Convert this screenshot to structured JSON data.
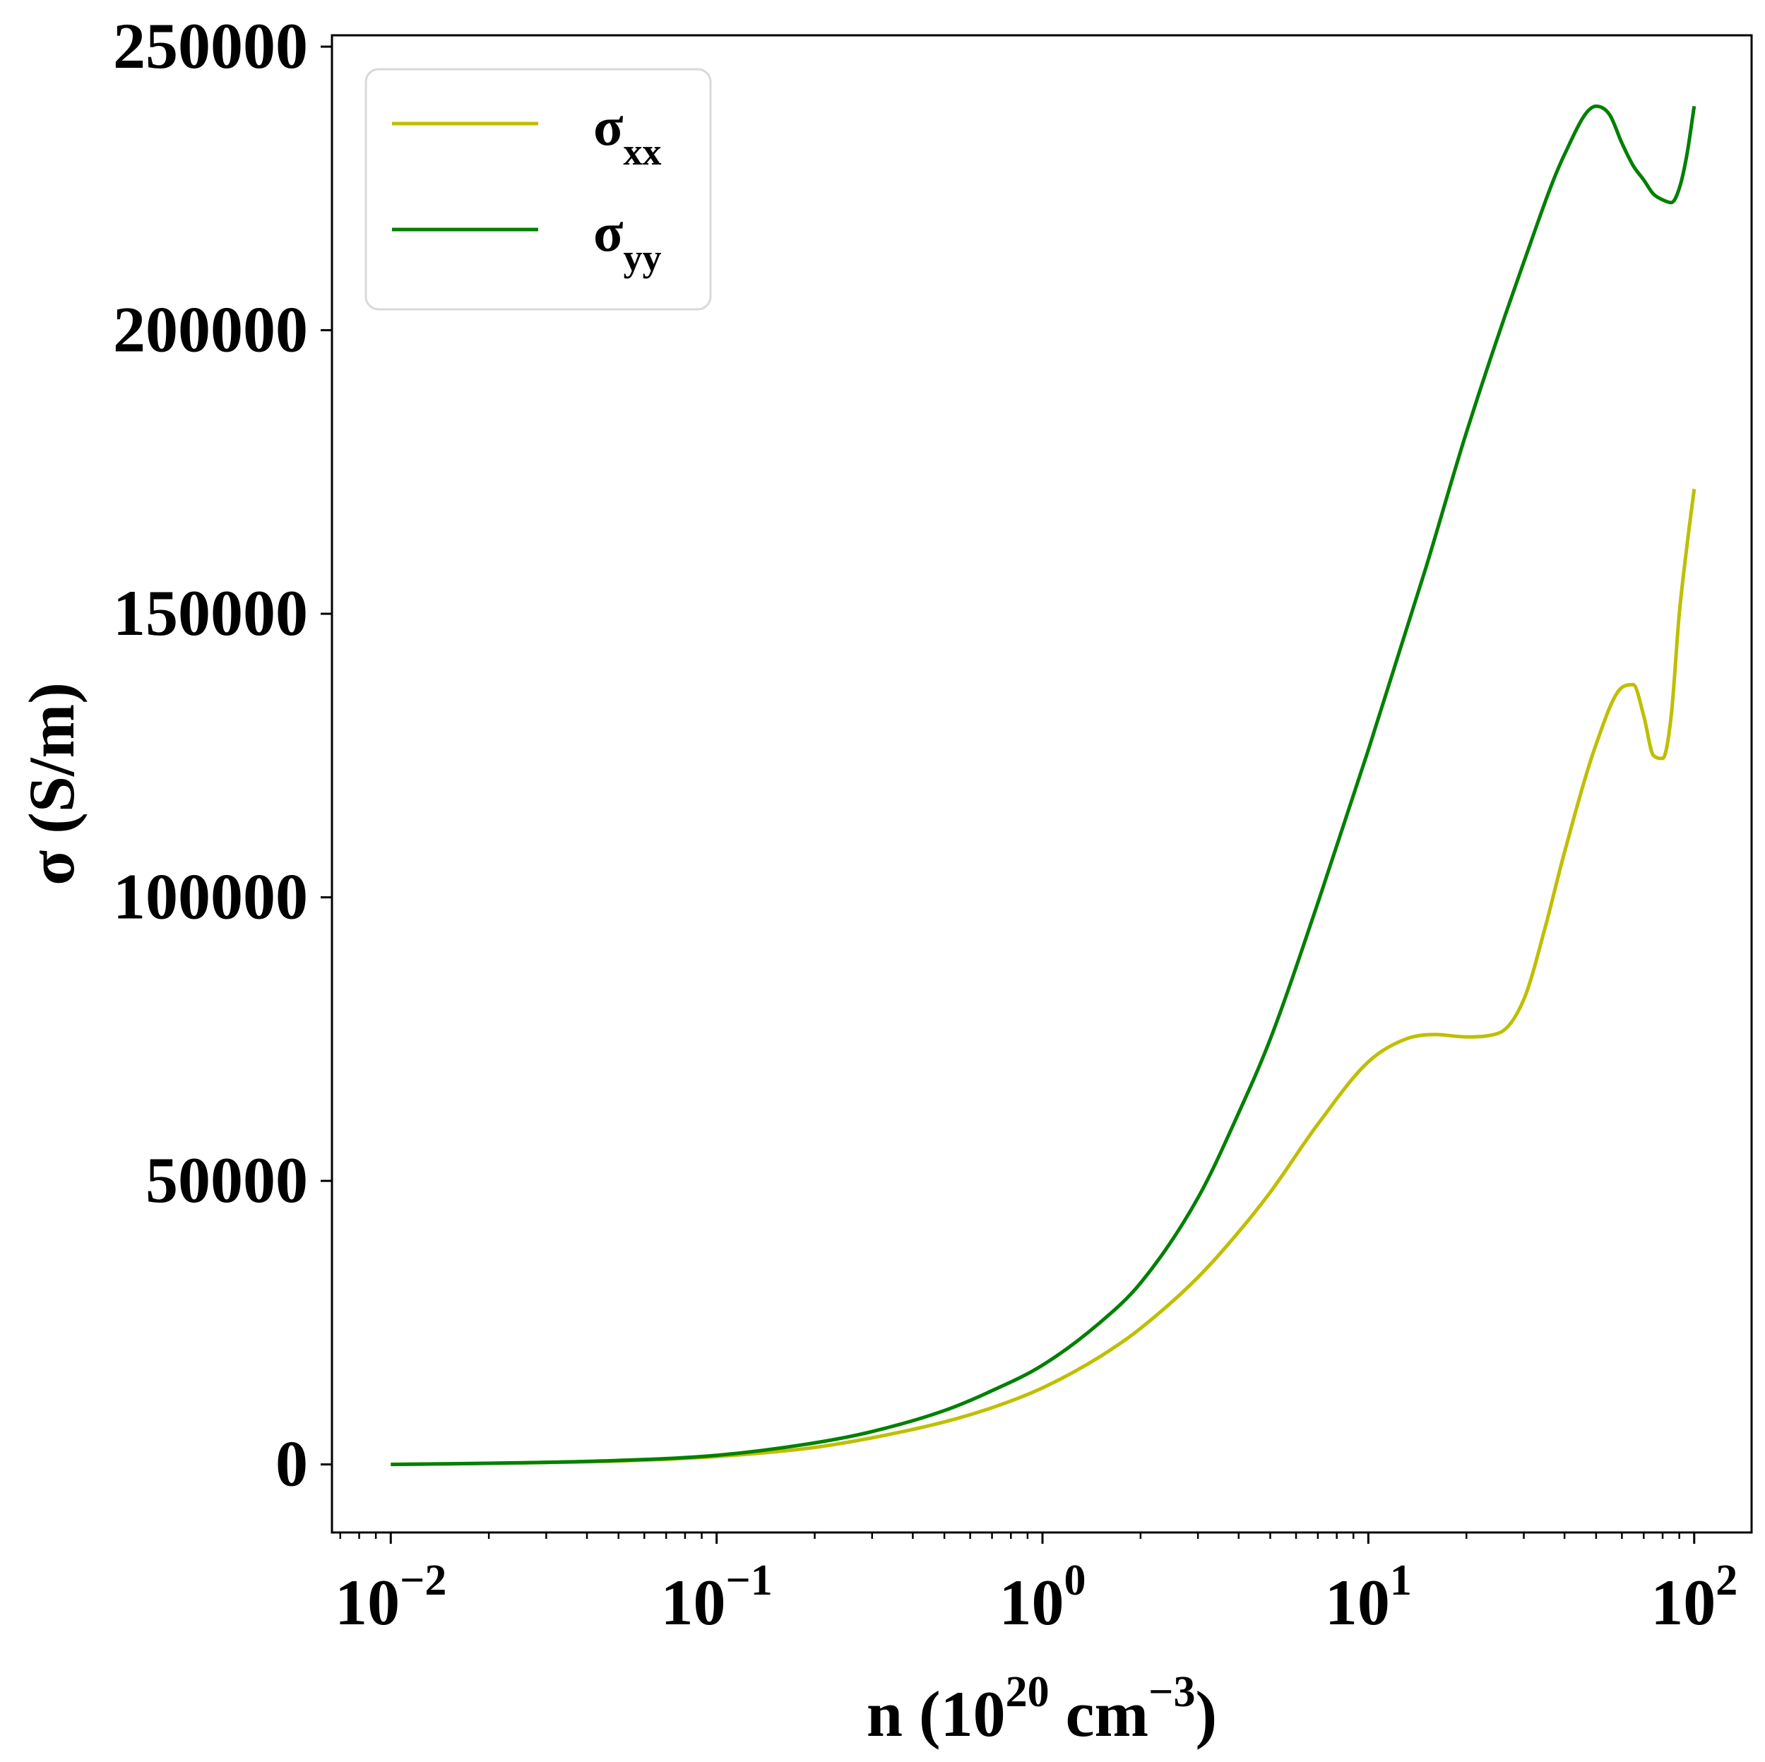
{
  "chart_data": {
    "type": "line",
    "title": "",
    "xlabel": {
      "main": "n (10",
      "sup1": "20",
      "mid": " cm",
      "sup2": "−3",
      "end": ")"
    },
    "ylabel": "σ (S/m)",
    "xscale": "log",
    "xlim": [
      0.0066,
      150
    ],
    "ylim": [
      -12000,
      252000
    ],
    "xticks": [
      {
        "value": 0.01,
        "base": "10",
        "exp": "−2"
      },
      {
        "value": 0.1,
        "base": "10",
        "exp": "−1"
      },
      {
        "value": 1,
        "base": "10",
        "exp": "0"
      },
      {
        "value": 10,
        "base": "10",
        "exp": "1"
      },
      {
        "value": 100,
        "base": "10",
        "exp": "2"
      }
    ],
    "yticks": [
      {
        "value": 0,
        "label": "0"
      },
      {
        "value": 50000,
        "label": "50000"
      },
      {
        "value": 100000,
        "label": "100000"
      },
      {
        "value": 150000,
        "label": "150000"
      },
      {
        "value": 200000,
        "label": "200000"
      },
      {
        "value": 250000,
        "label": "250000"
      }
    ],
    "legend": {
      "placement": "top-left",
      "entries": [
        {
          "base": "σ",
          "sub": "xx",
          "color": "#bfbf00"
        },
        {
          "base": "σ",
          "sub": "yy",
          "color": "#008000"
        }
      ]
    },
    "grid": false,
    "series": [
      {
        "name": "σxx",
        "color": "#bfbf00",
        "x": [
          0.01,
          0.02,
          0.05,
          0.1,
          0.2,
          0.3,
          0.5,
          0.7,
          1.0,
          1.5,
          2.0,
          3.0,
          4.0,
          5.0,
          7.0,
          10.0,
          13.0,
          16.0,
          20.0,
          25.0,
          30.0,
          35.0,
          40.0,
          50.0,
          60.0,
          65.0,
          70.0,
          75.0,
          80.0,
          85.0,
          90.0,
          95.0,
          100.0
        ],
        "y": [
          0,
          200,
          600,
          1400,
          3000,
          4700,
          7500,
          10000,
          13500,
          19000,
          24000,
          33000,
          41000,
          48000,
          60000,
          71000,
          75000,
          75800,
          75400,
          76000,
          82000,
          95000,
          108000,
          127000,
          137000,
          137500,
          132000,
          125000,
          124500,
          132000,
          150000,
          162000,
          172000
        ]
      },
      {
        "name": "σyy",
        "color": "#008000",
        "x": [
          0.01,
          0.02,
          0.05,
          0.1,
          0.2,
          0.3,
          0.5,
          0.7,
          1.0,
          1.5,
          2.0,
          3.0,
          4.0,
          5.0,
          7.0,
          10.0,
          15.0,
          20.0,
          30.0,
          40.0,
          50.0,
          55.0,
          60.0,
          65.0,
          70.0,
          75.0,
          80.0,
          85.0,
          90.0,
          95.0,
          100.0
        ],
        "y": [
          0,
          200,
          700,
          1600,
          3800,
          5800,
          9500,
          13000,
          17500,
          25000,
          32000,
          47000,
          62000,
          75000,
          99000,
          126000,
          158000,
          182000,
          212000,
          231000,
          239500,
          238000,
          233000,
          229000,
          226500,
          224000,
          223000,
          222500,
          225000,
          231000,
          239500
        ]
      }
    ]
  }
}
